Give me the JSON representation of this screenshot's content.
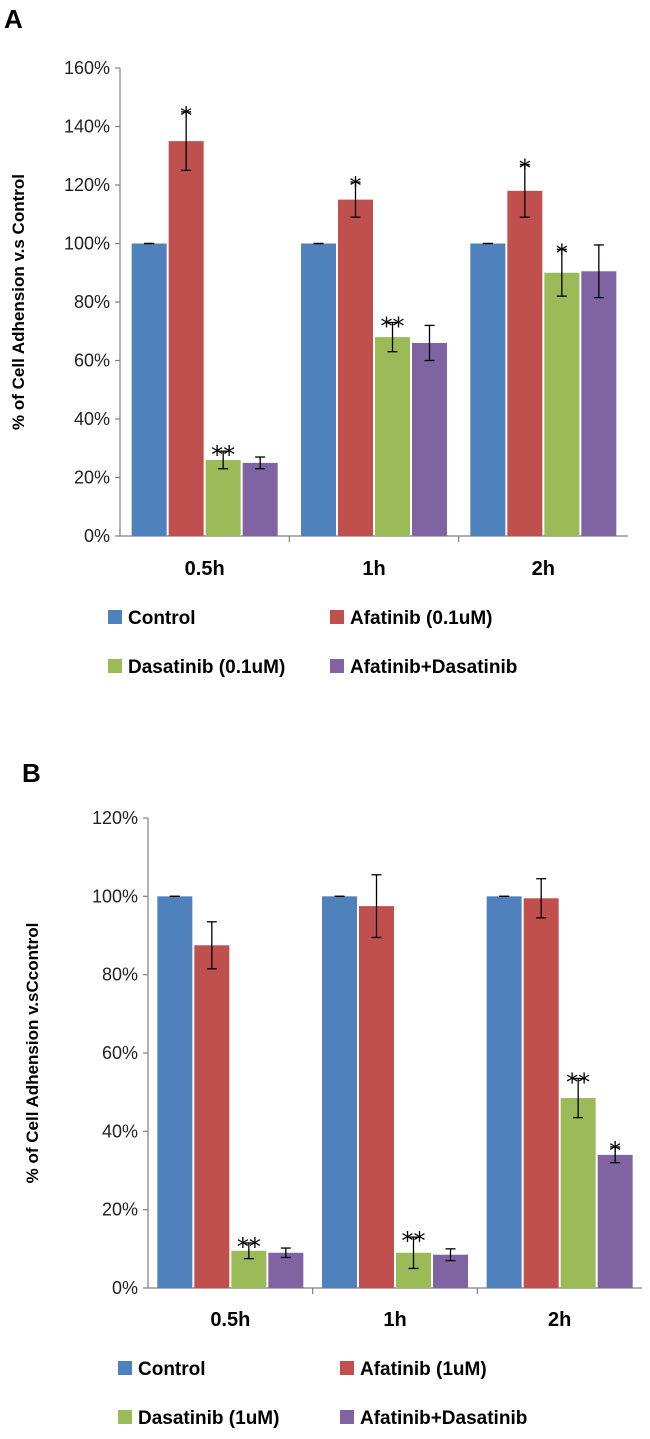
{
  "colors": {
    "series": [
      "#4F81BD",
      "#C0504D",
      "#9BBB59",
      "#8064A2"
    ],
    "axis": "#808080",
    "error_bar": "#000000"
  },
  "chart_data": [
    {
      "type": "bar",
      "panel": "A",
      "categories": [
        "0.5h",
        "1h",
        "2h"
      ],
      "ylabel": "% of Cell Adhension v.s Control",
      "ylim": [
        0,
        160
      ],
      "yticks": [
        "0%",
        "20%",
        "40%",
        "60%",
        "80%",
        "100%",
        "120%",
        "140%",
        "160%"
      ],
      "grid": false,
      "legend_position": "bottom",
      "series": [
        {
          "name": "Control",
          "values": [
            100,
            100,
            100
          ],
          "errors": [
            0,
            0,
            0
          ],
          "annotations": [
            "",
            "",
            ""
          ]
        },
        {
          "name": "Afatinib (0.1uM)",
          "values": [
            135,
            115,
            118
          ],
          "errors": [
            10,
            6,
            9
          ],
          "annotations": [
            "*",
            "*",
            "*"
          ]
        },
        {
          "name": "Dasatinib (0.1uM)",
          "values": [
            26,
            68,
            90
          ],
          "errors": [
            3,
            5,
            8
          ],
          "annotations": [
            "**",
            "**",
            "*"
          ]
        },
        {
          "name": "Afatinib+Dasatinib",
          "values": [
            25,
            66,
            90.5
          ],
          "errors": [
            2,
            6,
            9
          ],
          "annotations": [
            "",
            "",
            ""
          ]
        }
      ]
    },
    {
      "type": "bar",
      "panel": "B",
      "categories": [
        "0.5h",
        "1h",
        "2h"
      ],
      "ylabel": "% of Cell Adhension v.sCcontrol",
      "ylim": [
        0,
        120
      ],
      "yticks": [
        "0%",
        "20%",
        "40%",
        "60%",
        "80%",
        "100%",
        "120%"
      ],
      "grid": false,
      "legend_position": "bottom",
      "series": [
        {
          "name": "Control",
          "values": [
            100,
            100,
            100
          ],
          "errors": [
            0,
            0,
            0
          ],
          "annotations": [
            "",
            "",
            ""
          ]
        },
        {
          "name": "Afatinib (1uM)",
          "values": [
            87.5,
            97.5,
            99.5
          ],
          "errors": [
            6,
            8,
            5
          ],
          "annotations": [
            "",
            "",
            ""
          ]
        },
        {
          "name": "Dasatinib (1uM)",
          "values": [
            9.5,
            9,
            48.5
          ],
          "errors": [
            2,
            4,
            5
          ],
          "annotations": [
            "**",
            "**",
            "**"
          ]
        },
        {
          "name": "Afatinib+Dasatinib",
          "values": [
            9,
            8.5,
            34
          ],
          "errors": [
            1.2,
            1.5,
            2
          ],
          "annotations": [
            "",
            "",
            "*"
          ]
        }
      ]
    }
  ]
}
